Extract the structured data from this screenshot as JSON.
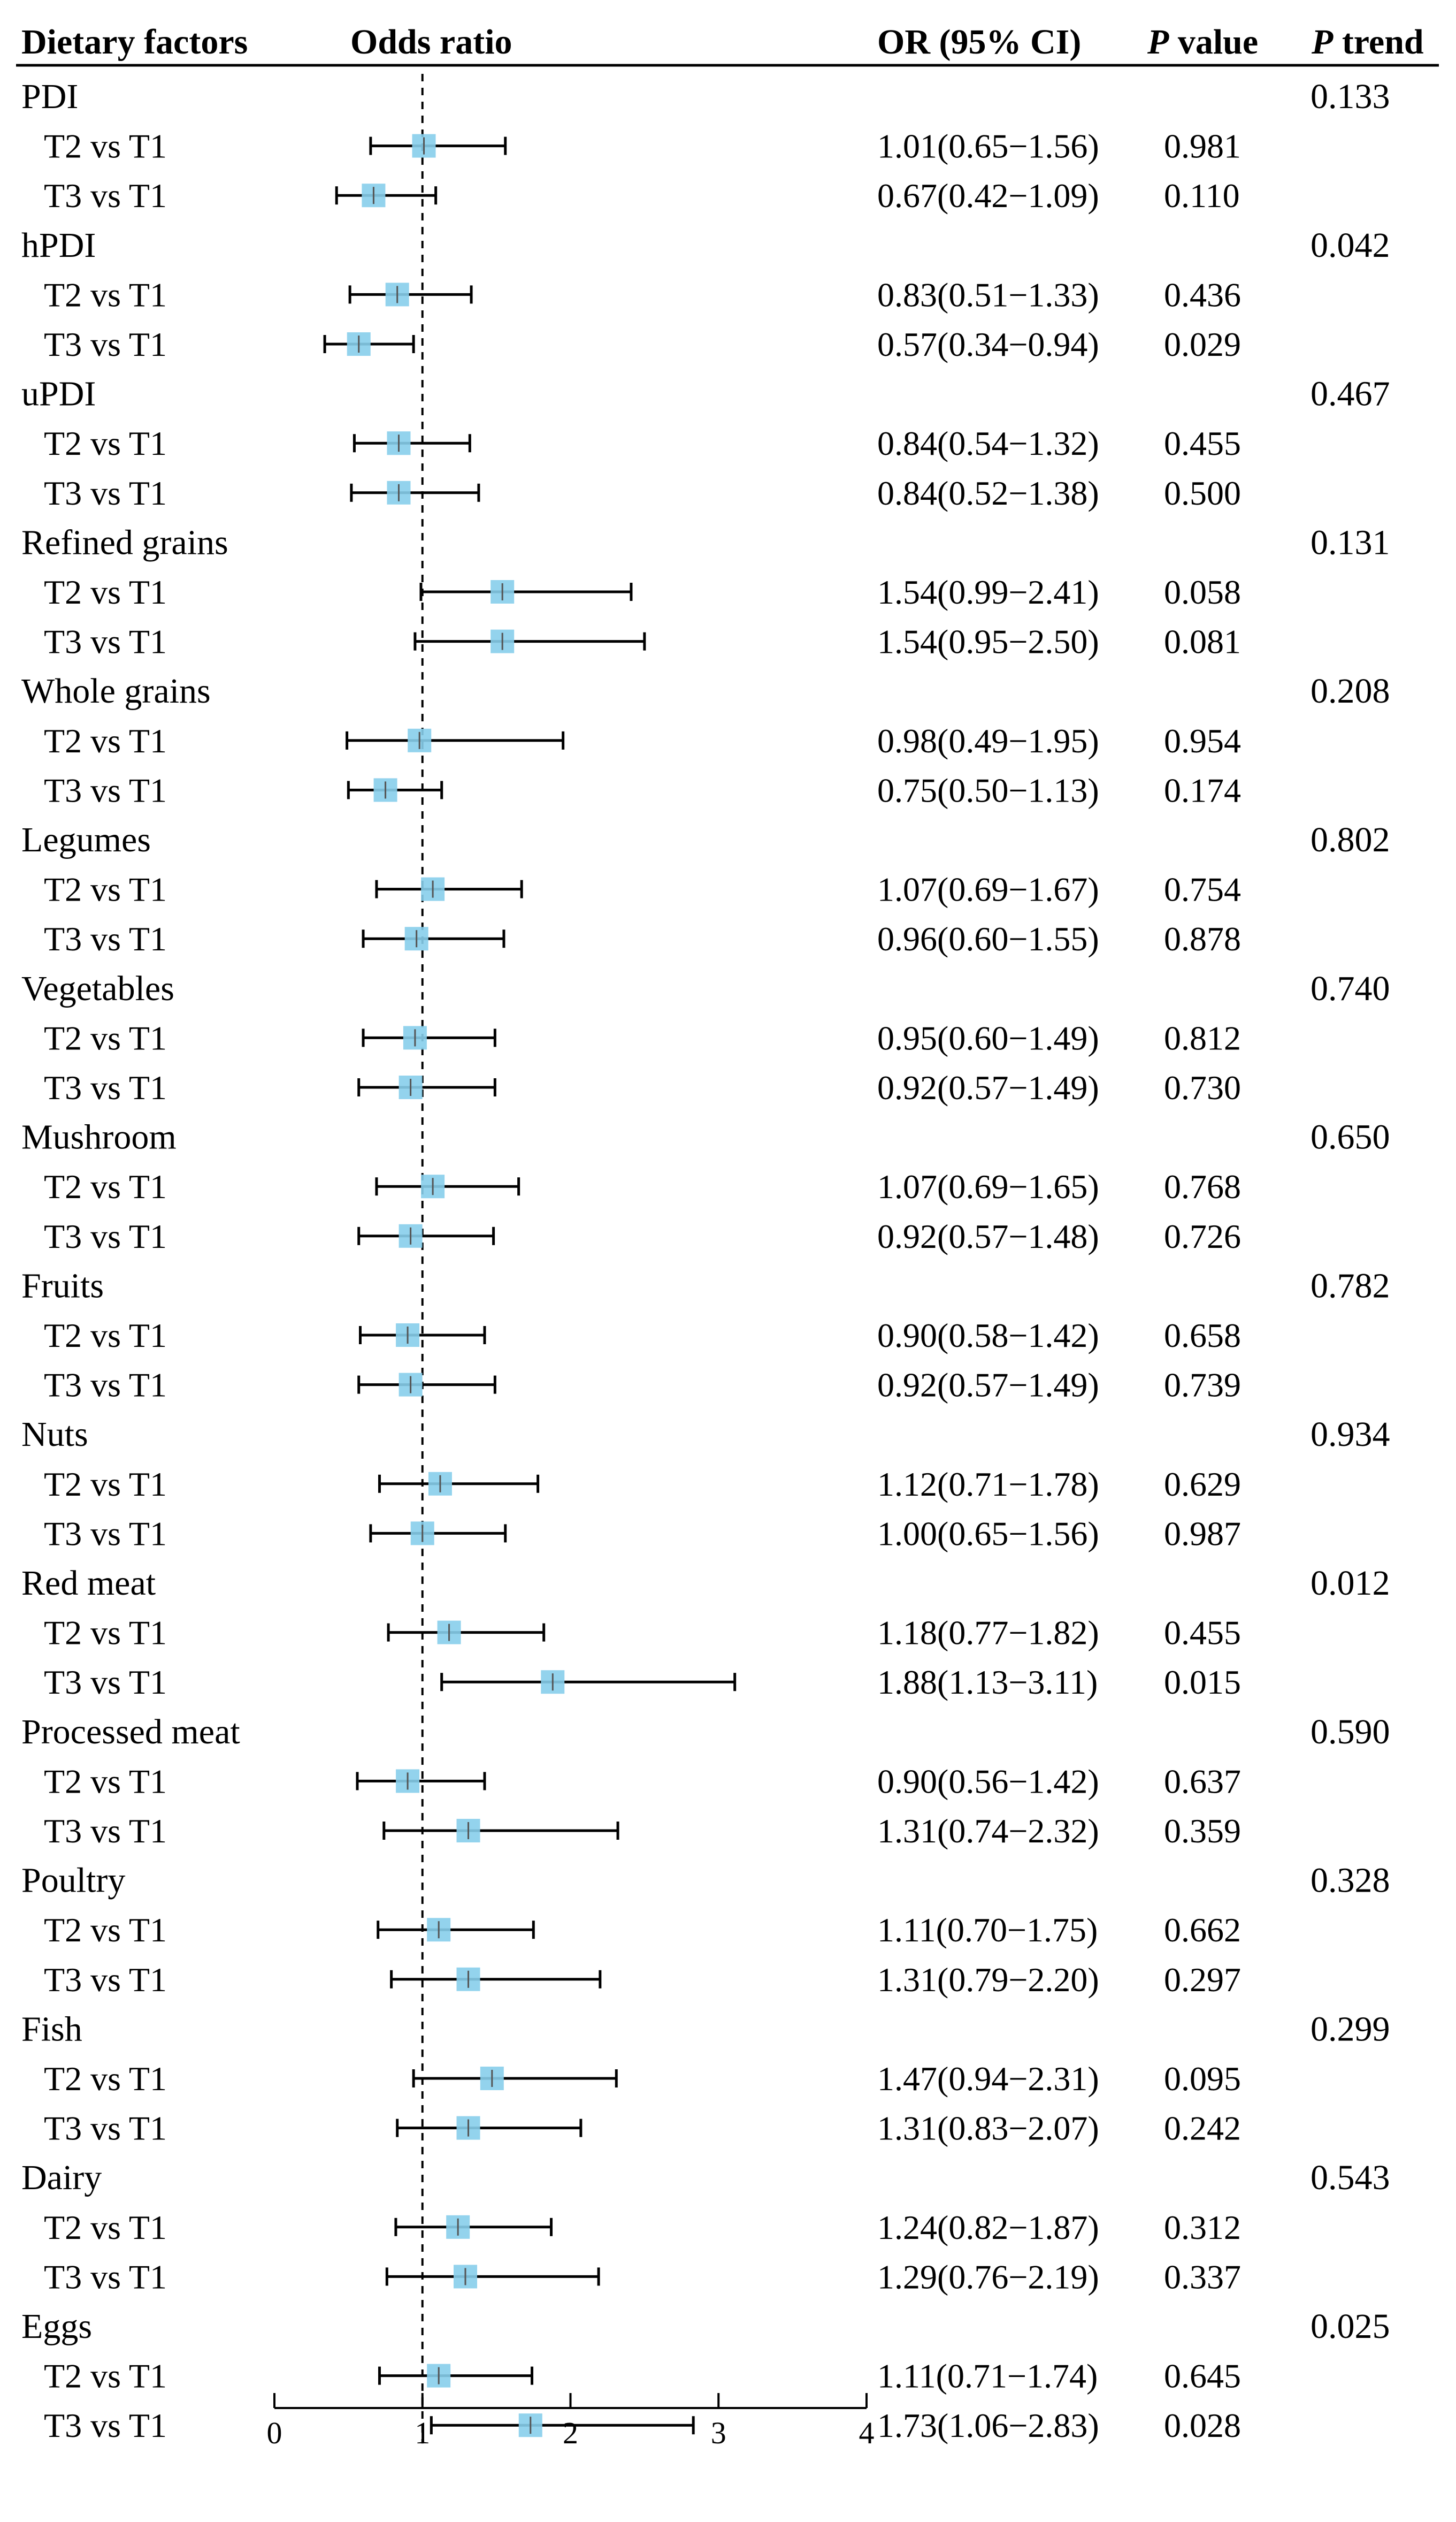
{
  "chart_data": {
    "type": "forest",
    "headers": {
      "factors": "Dietary factors",
      "odds_ratio": "Odds ratio",
      "or_ci": "OR (95% CI)",
      "p_value_italic": "P",
      "p_value_rest": " value",
      "p_trend_italic": "P",
      "p_trend_rest": " trend"
    },
    "reference_line": 1,
    "xlim": [
      0,
      4
    ],
    "xticks": [
      0,
      1,
      2,
      3,
      4
    ],
    "point_color": "#87CEEB",
    "groups": [
      {
        "name": "PDI",
        "p_trend": "0.133",
        "rows": [
          {
            "label": "T2 vs T1",
            "or": 1.01,
            "lo": 0.65,
            "hi": 1.56,
            "text": "1.01(0.65−1.56)",
            "p": "0.981"
          },
          {
            "label": "T3 vs T1",
            "or": 0.67,
            "lo": 0.42,
            "hi": 1.09,
            "text": "0.67(0.42−1.09)",
            "p": "0.110"
          }
        ]
      },
      {
        "name": "hPDI",
        "p_trend": "0.042",
        "rows": [
          {
            "label": "T2 vs T1",
            "or": 0.83,
            "lo": 0.51,
            "hi": 1.33,
            "text": "0.83(0.51−1.33)",
            "p": "0.436"
          },
          {
            "label": "T3 vs T1",
            "or": 0.57,
            "lo": 0.34,
            "hi": 0.94,
            "text": "0.57(0.34−0.94)",
            "p": "0.029"
          }
        ]
      },
      {
        "name": "uPDI",
        "p_trend": "0.467",
        "rows": [
          {
            "label": "T2 vs T1",
            "or": 0.84,
            "lo": 0.54,
            "hi": 1.32,
            "text": "0.84(0.54−1.32)",
            "p": "0.455"
          },
          {
            "label": "T3 vs T1",
            "or": 0.84,
            "lo": 0.52,
            "hi": 1.38,
            "text": "0.84(0.52−1.38)",
            "p": "0.500"
          }
        ]
      },
      {
        "name": "Refined grains",
        "p_trend": "0.131",
        "rows": [
          {
            "label": "T2 vs T1",
            "or": 1.54,
            "lo": 0.99,
            "hi": 2.41,
            "text": "1.54(0.99−2.41)",
            "p": "0.058"
          },
          {
            "label": "T3 vs T1",
            "or": 1.54,
            "lo": 0.95,
            "hi": 2.5,
            "text": "1.54(0.95−2.50)",
            "p": "0.081"
          }
        ]
      },
      {
        "name": "Whole grains",
        "p_trend": "0.208",
        "rows": [
          {
            "label": "T2 vs T1",
            "or": 0.98,
            "lo": 0.49,
            "hi": 1.95,
            "text": "0.98(0.49−1.95)",
            "p": "0.954"
          },
          {
            "label": "T3 vs T1",
            "or": 0.75,
            "lo": 0.5,
            "hi": 1.13,
            "text": "0.75(0.50−1.13)",
            "p": "0.174"
          }
        ]
      },
      {
        "name": "Legumes",
        "p_trend": "0.802",
        "rows": [
          {
            "label": "T2 vs T1",
            "or": 1.07,
            "lo": 0.69,
            "hi": 1.67,
            "text": "1.07(0.69−1.67)",
            "p": "0.754"
          },
          {
            "label": "T3 vs T1",
            "or": 0.96,
            "lo": 0.6,
            "hi": 1.55,
            "text": "0.96(0.60−1.55)",
            "p": "0.878"
          }
        ]
      },
      {
        "name": "Vegetables",
        "p_trend": "0.740",
        "rows": [
          {
            "label": "T2 vs T1",
            "or": 0.95,
            "lo": 0.6,
            "hi": 1.49,
            "text": "0.95(0.60−1.49)",
            "p": "0.812"
          },
          {
            "label": "T3 vs T1",
            "or": 0.92,
            "lo": 0.57,
            "hi": 1.49,
            "text": "0.92(0.57−1.49)",
            "p": "0.730"
          }
        ]
      },
      {
        "name": "Mushroom",
        "p_trend": "0.650",
        "rows": [
          {
            "label": "T2 vs T1",
            "or": 1.07,
            "lo": 0.69,
            "hi": 1.65,
            "text": "1.07(0.69−1.65)",
            "p": "0.768"
          },
          {
            "label": "T3 vs T1",
            "or": 0.92,
            "lo": 0.57,
            "hi": 1.48,
            "text": "0.92(0.57−1.48)",
            "p": "0.726"
          }
        ]
      },
      {
        "name": "Fruits",
        "p_trend": "0.782",
        "rows": [
          {
            "label": "T2 vs T1",
            "or": 0.9,
            "lo": 0.58,
            "hi": 1.42,
            "text": "0.90(0.58−1.42)",
            "p": "0.658"
          },
          {
            "label": "T3 vs T1",
            "or": 0.92,
            "lo": 0.57,
            "hi": 1.49,
            "text": "0.92(0.57−1.49)",
            "p": "0.739"
          }
        ]
      },
      {
        "name": "Nuts",
        "p_trend": "0.934",
        "rows": [
          {
            "label": "T2 vs T1",
            "or": 1.12,
            "lo": 0.71,
            "hi": 1.78,
            "text": "1.12(0.71−1.78)",
            "p": "0.629"
          },
          {
            "label": "T3 vs T1",
            "or": 1.0,
            "lo": 0.65,
            "hi": 1.56,
            "text": "1.00(0.65−1.56)",
            "p": "0.987"
          }
        ]
      },
      {
        "name": "Red meat",
        "p_trend": "0.012",
        "rows": [
          {
            "label": "T2 vs T1",
            "or": 1.18,
            "lo": 0.77,
            "hi": 1.82,
            "text": "1.18(0.77−1.82)",
            "p": "0.455"
          },
          {
            "label": "T3 vs T1",
            "or": 1.88,
            "lo": 1.13,
            "hi": 3.11,
            "text": "1.88(1.13−3.11)",
            "p": "0.015"
          }
        ]
      },
      {
        "name": "Processed meat",
        "p_trend": "0.590",
        "rows": [
          {
            "label": "T2 vs T1",
            "or": 0.9,
            "lo": 0.56,
            "hi": 1.42,
            "text": "0.90(0.56−1.42)",
            "p": "0.637"
          },
          {
            "label": "T3 vs T1",
            "or": 1.31,
            "lo": 0.74,
            "hi": 2.32,
            "text": "1.31(0.74−2.32)",
            "p": "0.359"
          }
        ]
      },
      {
        "name": "Poultry",
        "p_trend": "0.328",
        "rows": [
          {
            "label": "T2 vs T1",
            "or": 1.11,
            "lo": 0.7,
            "hi": 1.75,
            "text": "1.11(0.70−1.75)",
            "p": "0.662"
          },
          {
            "label": "T3 vs T1",
            "or": 1.31,
            "lo": 0.79,
            "hi": 2.2,
            "text": "1.31(0.79−2.20)",
            "p": "0.297"
          }
        ]
      },
      {
        "name": "Fish",
        "p_trend": "0.299",
        "rows": [
          {
            "label": "T2 vs T1",
            "or": 1.47,
            "lo": 0.94,
            "hi": 2.31,
            "text": "1.47(0.94−2.31)",
            "p": "0.095"
          },
          {
            "label": "T3 vs T1",
            "or": 1.31,
            "lo": 0.83,
            "hi": 2.07,
            "text": "1.31(0.83−2.07)",
            "p": "0.242"
          }
        ]
      },
      {
        "name": "Dairy",
        "p_trend": "0.543",
        "rows": [
          {
            "label": "T2 vs T1",
            "or": 1.24,
            "lo": 0.82,
            "hi": 1.87,
            "text": "1.24(0.82−1.87)",
            "p": "0.312"
          },
          {
            "label": "T3 vs T1",
            "or": 1.29,
            "lo": 0.76,
            "hi": 2.19,
            "text": "1.29(0.76−2.19)",
            "p": "0.337"
          }
        ]
      },
      {
        "name": "Eggs",
        "p_trend": "0.025",
        "rows": [
          {
            "label": "T2 vs T1",
            "or": 1.11,
            "lo": 0.71,
            "hi": 1.74,
            "text": "1.11(0.71−1.74)",
            "p": "0.645"
          },
          {
            "label": "T3 vs T1",
            "or": 1.73,
            "lo": 1.06,
            "hi": 2.83,
            "text": "1.73(1.06−2.83)",
            "p": "0.028"
          }
        ]
      }
    ]
  }
}
